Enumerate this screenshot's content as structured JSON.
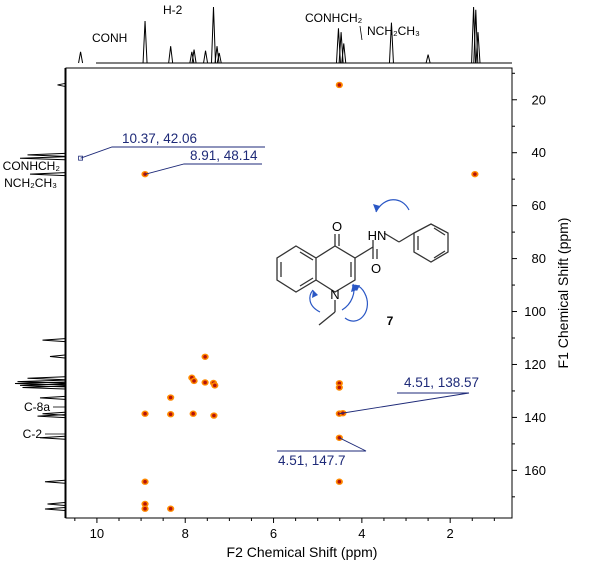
{
  "chart_data": {
    "type": "scatter",
    "x_axis": {
      "label": "F2 Chemical Shift (ppm)",
      "range": [
        10.7,
        0.6
      ],
      "reversed": true,
      "ticks": [
        10,
        8,
        6,
        4,
        2
      ]
    },
    "y_axis": {
      "label": "F1 Chemical Shift (ppm)",
      "range": [
        8,
        178
      ],
      "reversed": true,
      "ticks": [
        20,
        40,
        60,
        80,
        100,
        120,
        140,
        160
      ]
    },
    "proton_trace_labels": [
      {
        "id": "conh",
        "text": "CONH",
        "italic_suffix": "H",
        "x": 10.37
      },
      {
        "id": "h2",
        "text": "H-2",
        "x": 8.91
      },
      {
        "id": "conhch2",
        "text": "CONHCH₂",
        "x": 4.53
      },
      {
        "id": "nch2ch3",
        "text": "NCH₂CH₃",
        "x": 4.45
      }
    ],
    "carbon_trace_labels": [
      {
        "id": "conhch2",
        "text": "CONHCH₂",
        "y": 42.1
      },
      {
        "id": "nch2ch3",
        "text": "NCH₂CH₃",
        "y": 48.1
      },
      {
        "id": "c8a",
        "text": "C-8a",
        "y": 138.6
      },
      {
        "id": "c2",
        "text": "C-2",
        "y": 147.7
      }
    ],
    "cross_peaks": [
      {
        "x": 4.51,
        "y": 14.4
      },
      {
        "x": 8.91,
        "y": 48.1
      },
      {
        "x": 1.44,
        "y": 48.1
      },
      {
        "x": 7.55,
        "y": 117.1
      },
      {
        "x": 7.85,
        "y": 125.0
      },
      {
        "x": 7.8,
        "y": 126.2
      },
      {
        "x": 7.55,
        "y": 126.8
      },
      {
        "x": 7.36,
        "y": 127.0
      },
      {
        "x": 7.33,
        "y": 127.9
      },
      {
        "x": 4.51,
        "y": 127.1
      },
      {
        "x": 4.51,
        "y": 128.7
      },
      {
        "x": 8.33,
        "y": 132.5
      },
      {
        "x": 8.91,
        "y": 138.6
      },
      {
        "x": 8.33,
        "y": 138.8
      },
      {
        "x": 7.82,
        "y": 138.6
      },
      {
        "x": 7.35,
        "y": 139.3
      },
      {
        "x": 4.51,
        "y": 138.57
      },
      {
        "x": 4.43,
        "y": 138.4
      },
      {
        "x": 4.51,
        "y": 147.7
      },
      {
        "x": 8.91,
        "y": 164.3
      },
      {
        "x": 4.51,
        "y": 164.3
      },
      {
        "x": 8.91,
        "y": 172.7
      },
      {
        "x": 8.91,
        "y": 174.5
      },
      {
        "x": 8.33,
        "y": 174.5
      },
      {
        "x": 10.37,
        "y": 42.06,
        "style": "open"
      }
    ],
    "annotations": [
      {
        "text": "10.37, 42.06",
        "x": 10.37,
        "y": 42.06
      },
      {
        "text": "8.91, 48.14",
        "x": 8.91,
        "y": 48.14
      },
      {
        "text": "4.51, 138.57",
        "x": 4.51,
        "y": 138.57
      },
      {
        "text": "4.51, 147.7",
        "x": 4.51,
        "y": 147.7
      }
    ],
    "proton_1d_peaks": [
      {
        "x": 10.37,
        "h": 0.2
      },
      {
        "x": 8.91,
        "h": 0.75
      },
      {
        "x": 8.33,
        "h": 0.3
      },
      {
        "x": 7.85,
        "h": 0.2
      },
      {
        "x": 7.8,
        "h": 0.24
      },
      {
        "x": 7.54,
        "h": 0.22
      },
      {
        "x": 7.36,
        "h": 1.0
      },
      {
        "x": 7.28,
        "h": 0.3
      },
      {
        "x": 7.23,
        "h": 0.18
      },
      {
        "x": 4.53,
        "h": 0.62
      },
      {
        "x": 4.47,
        "h": 0.55
      },
      {
        "x": 4.41,
        "h": 0.35
      },
      {
        "x": 3.33,
        "h": 0.72
      },
      {
        "x": 2.5,
        "h": 0.15
      },
      {
        "x": 1.47,
        "h": 1.0
      },
      {
        "x": 1.42,
        "h": 0.95
      },
      {
        "x": 1.37,
        "h": 0.55
      }
    ],
    "carbon_1d_peaks": [
      {
        "y": 14.4,
        "h": 0.15
      },
      {
        "y": 40.8,
        "h": 0.75
      },
      {
        "y": 42.1,
        "h": 0.9
      },
      {
        "y": 48.1,
        "h": 0.7
      },
      {
        "y": 110.8,
        "h": 0.45
      },
      {
        "y": 117.0,
        "h": 0.3
      },
      {
        "y": 125.2,
        "h": 0.75
      },
      {
        "y": 126.5,
        "h": 0.95
      },
      {
        "y": 127.2,
        "h": 1.0
      },
      {
        "y": 127.9,
        "h": 0.9
      },
      {
        "y": 128.7,
        "h": 0.85
      },
      {
        "y": 132.6,
        "h": 0.5
      },
      {
        "y": 138.6,
        "h": 0.45
      },
      {
        "y": 139.5,
        "h": 0.55
      },
      {
        "y": 147.7,
        "h": 0.5
      },
      {
        "y": 164.3,
        "h": 0.4
      },
      {
        "y": 172.7,
        "h": 0.35
      },
      {
        "y": 174.6,
        "h": 0.4
      }
    ],
    "structure": {
      "compound_number": "7",
      "atoms": [
        "O",
        "HN",
        "O",
        "N"
      ]
    }
  }
}
